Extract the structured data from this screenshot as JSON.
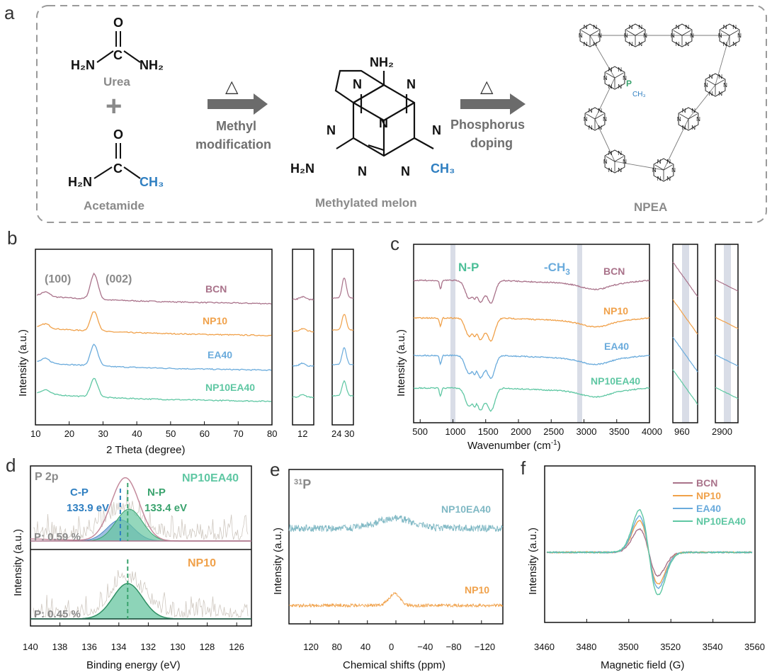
{
  "colors": {
    "BCN": "#a9728a",
    "NP10": "#f0a14a",
    "EA40": "#6aabdc",
    "NP10EA40": "#5fc7a3",
    "np_text": "#4cbf98",
    "ch3_text": "#6aabdc",
    "blue": "#2f7fc1",
    "phosphorus": "#3aa36e",
    "grey_text": "#8a8a8a",
    "band": "#d9dde7"
  },
  "panel_a": {
    "letter": "a",
    "urea": {
      "o": "O",
      "left": "H₂N",
      "c": "C",
      "right": "NH₂",
      "name": "Urea"
    },
    "plus": "+",
    "acetamide": {
      "o": "O",
      "left": "H₂N",
      "c": "C",
      "right": "CH₃",
      "name": "Acetamide"
    },
    "arrow1": {
      "symbol": "△",
      "line1": "Methyl",
      "line2": "modification"
    },
    "melon": {
      "top": "NH₂",
      "left": "H₂N",
      "right": "CH₃",
      "atom": "N",
      "name": "Methylated melon"
    },
    "arrow2": {
      "symbol": "△",
      "line1": "Phosphorus",
      "line2": "doping"
    },
    "npea": {
      "name": "NPEA",
      "p": "P",
      "ch3": "CH₃",
      "nh": "NH",
      "hn": "HN",
      "n": "N"
    }
  },
  "panel_b": {
    "letter": "b",
    "peak_100": "(100)",
    "peak_002": "(002)",
    "ylabel": "Intensity (a.u.)",
    "xlabel": "2 Theta (degree)",
    "xticks": [
      "10",
      "20",
      "30",
      "40",
      "50",
      "60",
      "70",
      "80"
    ],
    "inset1_ticks": [
      "12"
    ],
    "inset2_ticks": [
      "24",
      "30"
    ],
    "series_labels": [
      "BCN",
      "NP10",
      "EA40",
      "NP10EA40"
    ]
  },
  "panel_c": {
    "letter": "c",
    "np_label": "N-P",
    "ch3_label": "-CH",
    "ch3_sub": "3",
    "ylabel": "Intensity (a.u.)",
    "xlabel": "Wavenumber (cm",
    "xlabel_sup": "-1",
    "xlabel_end": ")",
    "xticks": [
      "500",
      "1000",
      "1500",
      "2000",
      "2500",
      "3000",
      "3500",
      "4000"
    ],
    "inset1_ticks": [
      "960"
    ],
    "inset2_ticks": [
      "2900"
    ],
    "series_labels": [
      "BCN",
      "NP10",
      "EA40",
      "NP10EA40"
    ]
  },
  "panel_d": {
    "letter": "d",
    "title": "P 2p",
    "sample_top": "NP10EA40",
    "cp_label": "C-P",
    "cp_value": "133.9 eV",
    "np_label": "N-P",
    "np_value": "133.4 eV",
    "p_top": "P: 0.59 %",
    "sample_bottom": "NP10",
    "p_bottom": "P: 0.45 %",
    "ylabel": "Intensity (a.u.)",
    "xlabel": "Binding energy (eV)",
    "xticks": [
      "140",
      "138",
      "136",
      "134",
      "132",
      "130",
      "128",
      "126"
    ]
  },
  "panel_e": {
    "letter": "e",
    "title_sup": "31",
    "title": "P",
    "label_top": "NP10EA40",
    "label_bottom": "NP10",
    "ylabel": "Intensity (a.u.)",
    "xlabel": "Chemical shifts (ppm)",
    "xticks": [
      "120",
      "80",
      "40",
      "0",
      "−40",
      "−80",
      "−120"
    ]
  },
  "panel_f": {
    "letter": "f",
    "legend": [
      "BCN",
      "NP10",
      "EA40",
      "NP10EA40"
    ],
    "ylabel": "Intensity (a.u.)",
    "xlabel": "Magnetic field (G)",
    "xticks": [
      "3460",
      "3480",
      "3500",
      "3520",
      "3540",
      "3560"
    ]
  },
  "chart_data": [
    {
      "type": "line",
      "panel": "b",
      "xlabel": "2 Theta (degree)",
      "ylabel": "Intensity (a.u.)",
      "xlim": [
        10,
        80
      ],
      "series": [
        {
          "name": "BCN",
          "x": [
            10,
            13,
            20,
            27.4,
            35,
            80
          ],
          "y": [
            0.05,
            0.25,
            0.12,
            1.0,
            0.1,
            0.0
          ]
        },
        {
          "name": "NP10",
          "x": [
            10,
            13,
            20,
            27.4,
            35,
            80
          ],
          "y": [
            0.05,
            0.2,
            0.1,
            0.75,
            0.08,
            0.0
          ]
        },
        {
          "name": "EA40",
          "x": [
            10,
            13,
            20,
            27.4,
            35,
            80
          ],
          "y": [
            0.05,
            0.22,
            0.1,
            0.8,
            0.08,
            0.0
          ]
        },
        {
          "name": "NP10EA40",
          "x": [
            10,
            13,
            20,
            27.4,
            35,
            80
          ],
          "y": [
            0.05,
            0.2,
            0.1,
            0.7,
            0.08,
            0.0
          ]
        }
      ]
    },
    {
      "type": "line",
      "panel": "c",
      "xlabel": "Wavenumber (cm-1)",
      "ylabel": "Intensity (a.u.)",
      "xlim": [
        400,
        4000
      ],
      "series": [
        {
          "name": "BCN"
        },
        {
          "name": "NP10"
        },
        {
          "name": "EA40"
        },
        {
          "name": "NP10EA40"
        }
      ]
    },
    {
      "type": "line",
      "panel": "d",
      "xlabel": "Binding energy (eV)",
      "ylabel": "Intensity (a.u.)",
      "xlim": [
        140,
        125
      ],
      "series": [
        {
          "name": "C-P",
          "center": 133.9
        },
        {
          "name": "N-P",
          "center": 133.4
        }
      ]
    },
    {
      "type": "line",
      "panel": "e",
      "xlabel": "Chemical shifts (ppm)",
      "ylabel": "Intensity (a.u.)",
      "xlim": [
        150,
        -150
      ],
      "series": [
        {
          "name": "NP10EA40"
        },
        {
          "name": "NP10"
        }
      ]
    },
    {
      "type": "line",
      "panel": "f",
      "xlabel": "Magnetic field (G)",
      "ylabel": "Intensity (a.u.)",
      "xlim": [
        3460,
        3560
      ],
      "series": [
        {
          "name": "BCN",
          "amp": 0.55
        },
        {
          "name": "NP10",
          "amp": 0.75
        },
        {
          "name": "EA40",
          "amp": 0.85
        },
        {
          "name": "NP10EA40",
          "amp": 1.0
        }
      ]
    }
  ]
}
